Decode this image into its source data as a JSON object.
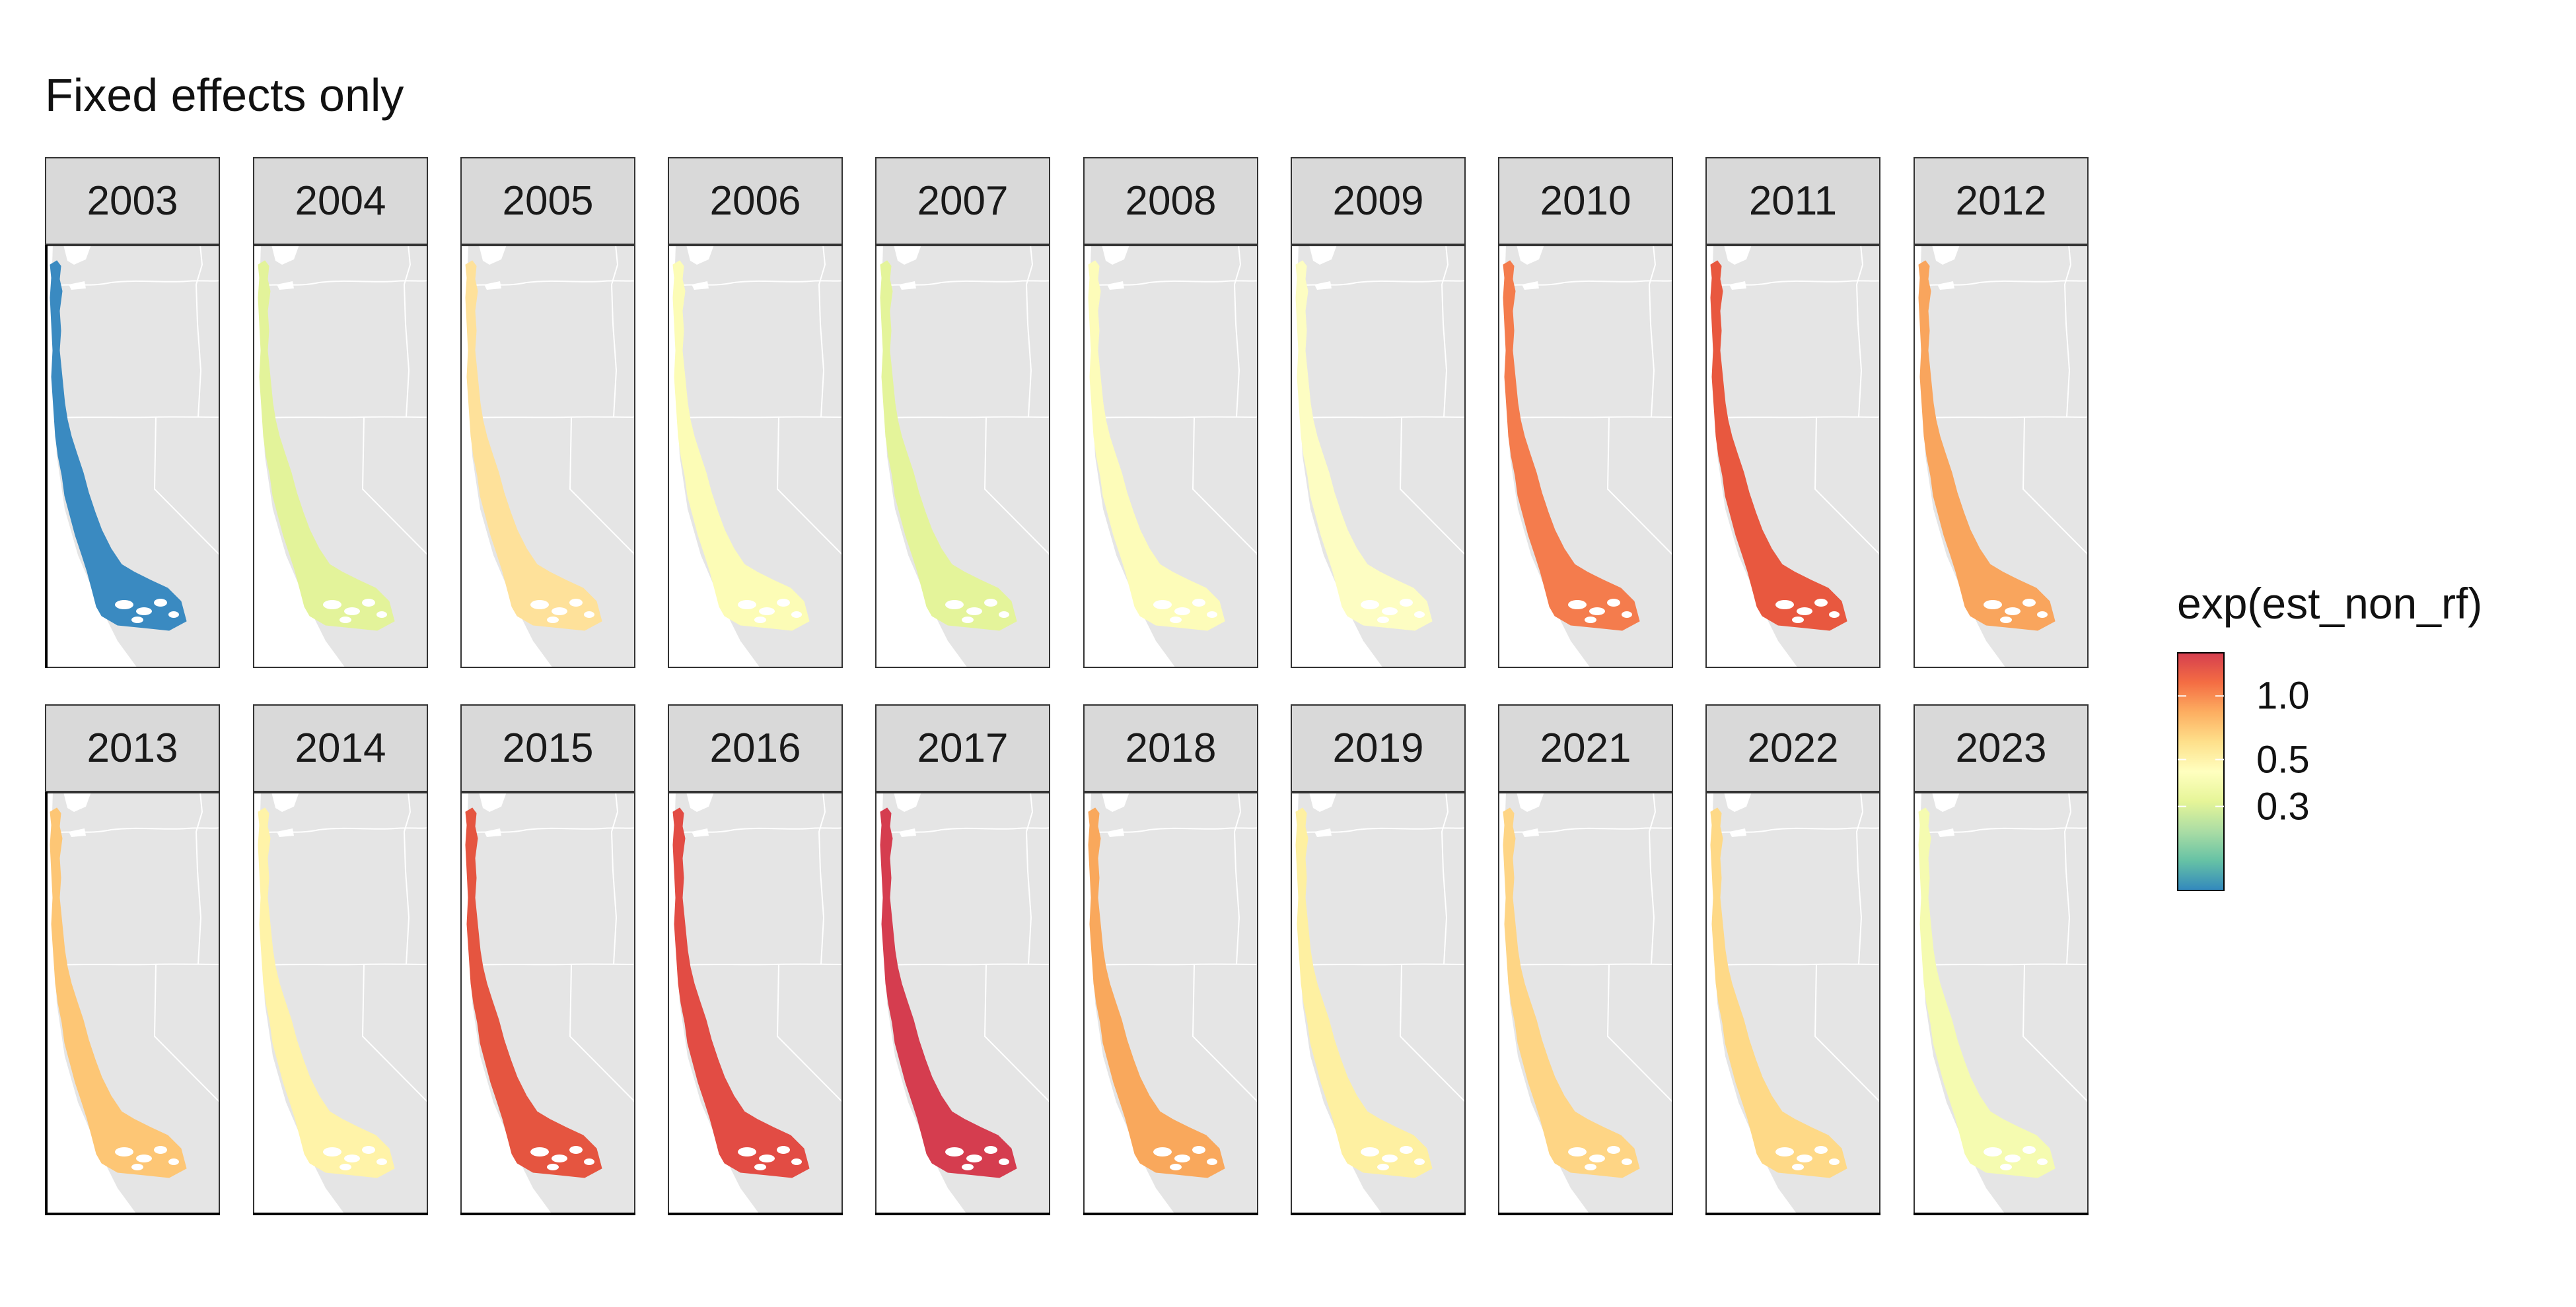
{
  "chart_data": {
    "type": "map",
    "title": "Fixed effects only",
    "facet_variable": "year",
    "legend": {
      "title": "exp(est_non_rf)",
      "position": "right",
      "scale": "log",
      "ticks": [
        1.0,
        0.5,
        0.3
      ],
      "tick_labels": [
        "1.0",
        "0.5",
        "0.3"
      ],
      "range": [
        0.12,
        1.6
      ],
      "palette": [
        "#3288bd",
        "#66c2a5",
        "#abdda4",
        "#e6f598",
        "#ffffbf",
        "#fee08b",
        "#fdae61",
        "#f46d43",
        "#d53e4f"
      ]
    },
    "facets": [
      {
        "label": "2003",
        "value": 0.12,
        "color": "#3a8ac1"
      },
      {
        "label": "2004",
        "value": 0.28,
        "color": "#e3f39a"
      },
      {
        "label": "2005",
        "value": 0.47,
        "color": "#fee19a"
      },
      {
        "label": "2006",
        "value": 0.36,
        "color": "#fcfcb6"
      },
      {
        "label": "2007",
        "value": 0.29,
        "color": "#e4f49a"
      },
      {
        "label": "2008",
        "value": 0.37,
        "color": "#fdfcb9"
      },
      {
        "label": "2009",
        "value": 0.36,
        "color": "#fdfdc2"
      },
      {
        "label": "2010",
        "value": 0.95,
        "color": "#f47c4d"
      },
      {
        "label": "2011",
        "value": 1.1,
        "color": "#e8583f"
      },
      {
        "label": "2012",
        "value": 0.75,
        "color": "#f9a55d"
      },
      {
        "label": "2013",
        "value": 0.6,
        "color": "#fdc675"
      },
      {
        "label": "2014",
        "value": 0.45,
        "color": "#fff3a8"
      },
      {
        "label": "2015",
        "value": 1.15,
        "color": "#e55540"
      },
      {
        "label": "2016",
        "value": 1.2,
        "color": "#e24c44"
      },
      {
        "label": "2017",
        "value": 1.5,
        "color": "#d53d4f"
      },
      {
        "label": "2018",
        "value": 0.75,
        "color": "#f9a85c"
      },
      {
        "label": "2019",
        "value": 0.45,
        "color": "#fef0a1"
      },
      {
        "label": "2021",
        "value": 0.55,
        "color": "#fed585"
      },
      {
        "label": "2022",
        "value": 0.53,
        "color": "#fed987"
      },
      {
        "label": "2023",
        "value": 0.33,
        "color": "#f5fbb0"
      }
    ],
    "colors": {
      "land": "#e5e5e5",
      "borders": "#ffffff",
      "strip_background": "#d9d9d9",
      "panel_border": "#333333"
    }
  }
}
